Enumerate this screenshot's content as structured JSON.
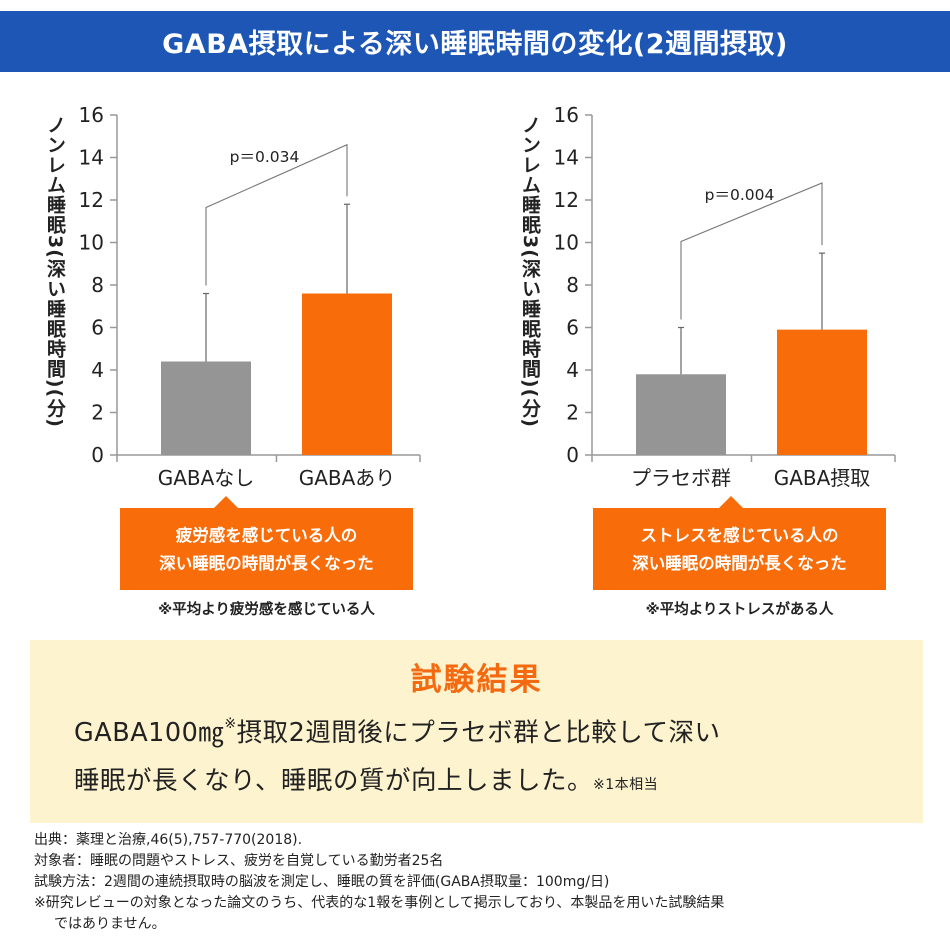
{
  "header": {
    "title": "GABA摂取による深い睡眠時間の変化(2週間摂取)"
  },
  "colors": {
    "header_bg": "#1d56b4",
    "gray_bar": "#959595",
    "orange_bar": "#f86c09",
    "results_bg": "#fdf3cf",
    "results_title": "#f46a10"
  },
  "chart_data": [
    {
      "type": "bar",
      "ylabel": "ノンレム睡眠3(深い睡眠時間)(分)",
      "ylim": [
        0,
        16
      ],
      "yticks": [
        "0",
        "2",
        "4",
        "6",
        "8",
        "10",
        "12",
        "14",
        "16"
      ],
      "categories": [
        "GABAなし",
        "GABAあり"
      ],
      "values": [
        4.4,
        7.6
      ],
      "error_upper": [
        7.6,
        11.8
      ],
      "bar_colors": [
        "#959595",
        "#f86c09"
      ],
      "bracket_peak": 14.6,
      "p_label": "p＝0.034"
    },
    {
      "type": "bar",
      "ylabel": "ノンレム睡眠3(深い睡眠時間)(分)",
      "ylim": [
        0,
        16
      ],
      "yticks": [
        "0",
        "2",
        "4",
        "6",
        "8",
        "10",
        "12",
        "14",
        "16"
      ],
      "categories": [
        "プラセボ群",
        "GABA摂取"
      ],
      "values": [
        3.8,
        5.9
      ],
      "error_upper": [
        6.0,
        9.5
      ],
      "bar_colors": [
        "#959595",
        "#f86c09"
      ],
      "bracket_peak": 12.8,
      "p_label": "p＝0.004"
    }
  ],
  "callouts": {
    "left": {
      "line1": "疲労感を感じている人の",
      "line2": "深い睡眠の時間が長くなった",
      "note": "※平均より疲労感を感じている人"
    },
    "right": {
      "line1": "ストレスを感じている人の",
      "line2": "深い睡眠の時間が長くなった",
      "note": "※平均よりストレスがある人"
    }
  },
  "results": {
    "title": "試験結果",
    "line1_a": "GABA100",
    "line1_unit": "㎎",
    "line1_mark": "※",
    "line1_b": "摂取2週間後にプラセボ群と比較して深い",
    "line2": "睡眠が長くなり、睡眠の質が向上しました。",
    "line2_note": "※1本相当"
  },
  "footnotes": {
    "source": "出典：薬理と治療,46(5),757-770(2018).",
    "subjects": "対象者：睡眠の問題やストレス、疲労を自覚している勤労者25名",
    "method": "試験方法：2週間の連続摂取時の脳波を測定し、睡眠の質を評価(GABA摂取量：100mg/日)",
    "disclaimer1": "※研究レビューの対象となった論文のうち、代表的な1報を事例として掲示しており、本製品を用いた試験結果",
    "disclaimer2": "ではありません。"
  }
}
